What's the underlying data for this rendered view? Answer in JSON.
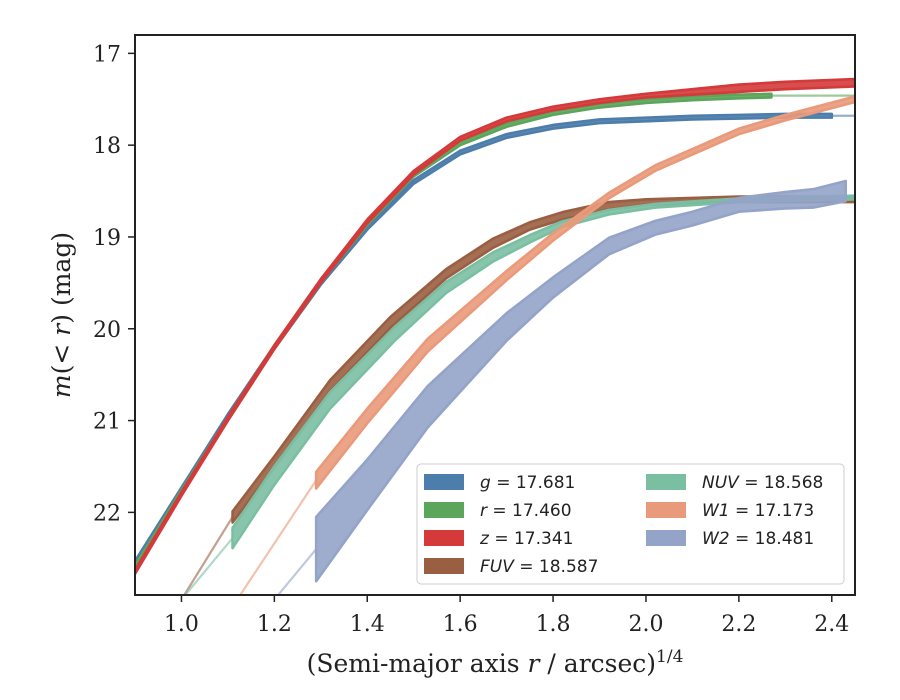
{
  "chart_data": {
    "type": "line",
    "xlabel": "(Semi-major axis r / arcsec)",
    "xlabel_exp": "1/4",
    "ylabel": "m(< r) (mag)",
    "xlim": [
      0.9,
      2.45
    ],
    "ylim": [
      22.9,
      16.8
    ],
    "y_inverted": true,
    "xticks": [
      1.0,
      1.2,
      1.4,
      1.6,
      1.8,
      2.0,
      2.2,
      2.4
    ],
    "xtick_labels": [
      "1.0",
      "1.2",
      "1.4",
      "1.6",
      "1.8",
      "2.0",
      "2.2",
      "2.4"
    ],
    "yticks": [
      17,
      18,
      19,
      20,
      21,
      22
    ],
    "ytick_labels": [
      "17",
      "18",
      "19",
      "20",
      "21",
      "22"
    ],
    "grid": false,
    "legend_position": "bottom-right",
    "legend_columns": 2,
    "series": [
      {
        "name": "g",
        "legend_label": "g = 17.681",
        "color": "#4c7dab",
        "x": [
          0.9,
          1.0,
          1.1,
          1.2,
          1.3,
          1.4,
          1.5,
          1.6,
          1.7,
          1.8,
          1.9,
          2.0,
          2.1,
          2.2,
          2.3,
          2.4
        ],
        "y": [
          22.55,
          21.75,
          20.95,
          20.2,
          19.5,
          18.9,
          18.4,
          18.08,
          17.9,
          17.8,
          17.74,
          17.72,
          17.7,
          17.69,
          17.68,
          17.68
        ],
        "width": [
          0.04,
          0.04,
          0.04,
          0.04,
          0.04,
          0.04,
          0.04,
          0.04,
          0.04,
          0.04,
          0.04,
          0.04,
          0.04,
          0.04,
          0.04,
          0.04
        ],
        "extrap_x": [
          2.4,
          2.45
        ],
        "extrap_y": [
          17.68,
          17.68
        ]
      },
      {
        "name": "r",
        "legend_label": "r = 17.460",
        "color": "#5ba65b",
        "x": [
          0.9,
          1.0,
          1.1,
          1.2,
          1.3,
          1.4,
          1.5,
          1.6,
          1.7,
          1.8,
          1.9,
          2.0,
          2.1,
          2.2,
          2.27
        ],
        "y": [
          22.6,
          21.78,
          20.98,
          20.2,
          19.48,
          18.85,
          18.32,
          17.98,
          17.78,
          17.65,
          17.57,
          17.52,
          17.49,
          17.47,
          17.46
        ],
        "width": [
          0.04,
          0.04,
          0.04,
          0.04,
          0.04,
          0.04,
          0.04,
          0.04,
          0.04,
          0.04,
          0.04,
          0.04,
          0.04,
          0.04,
          0.04
        ],
        "extrap_x": [
          2.27,
          2.45
        ],
        "extrap_y": [
          17.46,
          17.46
        ]
      },
      {
        "name": "z",
        "legend_label": "z = 17.341",
        "color": "#d43a3a",
        "x": [
          0.9,
          1.0,
          1.1,
          1.2,
          1.3,
          1.4,
          1.5,
          1.6,
          1.7,
          1.8,
          1.9,
          2.0,
          2.1,
          2.2,
          2.3,
          2.45
        ],
        "y": [
          22.65,
          21.8,
          20.98,
          20.2,
          19.48,
          18.83,
          18.3,
          17.93,
          17.72,
          17.6,
          17.52,
          17.46,
          17.42,
          17.38,
          17.35,
          17.32
        ],
        "width": [
          0.04,
          0.04,
          0.04,
          0.04,
          0.04,
          0.04,
          0.04,
          0.04,
          0.04,
          0.04,
          0.04,
          0.04,
          0.06,
          0.08,
          0.08,
          0.08
        ],
        "extrap_x": [],
        "extrap_y": []
      },
      {
        "name": "FUV",
        "legend_label": "FUV = 18.587",
        "color": "#9a5f42",
        "x": [
          1.11,
          1.2,
          1.32,
          1.45,
          1.57,
          1.67,
          1.75,
          1.82,
          1.92,
          2.0,
          2.2,
          2.45
        ],
        "y": [
          22.05,
          21.45,
          20.62,
          19.93,
          19.4,
          19.07,
          18.88,
          18.77,
          18.66,
          18.62,
          18.59,
          18.59
        ],
        "width": [
          0.12,
          0.12,
          0.12,
          0.12,
          0.1,
          0.1,
          0.08,
          0.08,
          0.08,
          0.06,
          0.06,
          0.06
        ],
        "extrap_x": [
          1.0,
          1.11
        ],
        "extrap_y": [
          22.95,
          22.05
        ]
      },
      {
        "name": "NUV",
        "legend_label": "NUV = 18.568",
        "color": "#7bbfa3",
        "x": [
          1.11,
          1.2,
          1.32,
          1.46,
          1.57,
          1.67,
          1.75,
          1.82,
          1.92,
          2.02,
          2.2,
          2.45
        ],
        "y": [
          22.28,
          21.6,
          20.78,
          20.05,
          19.55,
          19.22,
          19.02,
          18.86,
          18.73,
          18.66,
          18.6,
          18.57
        ],
        "width": [
          0.22,
          0.2,
          0.18,
          0.15,
          0.12,
          0.1,
          0.08,
          0.06,
          0.05,
          0.04,
          0.04,
          0.04
        ],
        "extrap_x": [
          1.0,
          1.11
        ],
        "extrap_y": [
          22.95,
          22.28
        ]
      },
      {
        "name": "W1",
        "legend_label": "W1 = 17.173",
        "color": "#e99a7a",
        "x": [
          1.29,
          1.4,
          1.53,
          1.7,
          1.8,
          1.92,
          2.02,
          2.2,
          2.3,
          2.45
        ],
        "y": [
          21.65,
          20.95,
          20.18,
          19.42,
          19.0,
          18.55,
          18.25,
          17.85,
          17.7,
          17.5
        ],
        "width": [
          0.18,
          0.16,
          0.14,
          0.1,
          0.08,
          0.06,
          0.06,
          0.06,
          0.06,
          0.06
        ],
        "extrap_x": [
          1.12,
          1.29
        ],
        "extrap_y": [
          22.95,
          21.65
        ]
      },
      {
        "name": "W2",
        "legend_label": "W2 = 18.481",
        "color": "#94a3c8",
        "x": [
          1.29,
          1.4,
          1.53,
          1.7,
          1.8,
          1.92,
          2.02,
          2.1,
          2.2,
          2.3,
          2.36,
          2.43
        ],
        "y": [
          22.4,
          21.7,
          20.85,
          19.98,
          19.55,
          19.1,
          18.9,
          18.8,
          18.65,
          18.6,
          18.58,
          18.5
        ],
        "width": [
          0.7,
          0.55,
          0.45,
          0.3,
          0.22,
          0.18,
          0.15,
          0.15,
          0.15,
          0.18,
          0.2,
          0.22
        ],
        "extrap_x": [
          1.2,
          1.29
        ],
        "extrap_y": [
          22.95,
          22.4
        ]
      }
    ]
  }
}
